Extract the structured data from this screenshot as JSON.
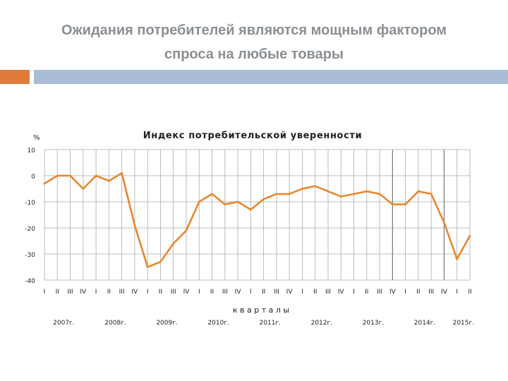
{
  "slide": {
    "title_line1": "Ожидания потребителей являются мощным фактором",
    "title_line2": "спроса на любые товары"
  },
  "colors": {
    "accent_orange": "#e07b3a",
    "accent_blue": "#a9bdd6",
    "line": "#e8872e",
    "grid": "#aaaaaa",
    "title": "#8a8f94"
  },
  "chart_data": {
    "type": "line",
    "title": "Индекс потребительской уверенности",
    "ylabel": "%",
    "xlabel": "к в а р т а л ы",
    "ylim": [
      -40,
      10
    ],
    "yticks": [
      10,
      0,
      -10,
      -20,
      -30,
      -40
    ],
    "grid": true,
    "x": [
      "I",
      "II",
      "III",
      "IV",
      "I",
      "II",
      "III",
      "IV",
      "I",
      "II",
      "III",
      "IV",
      "I",
      "II",
      "III",
      "IV",
      "I",
      "II",
      "III",
      "IV",
      "I",
      "II",
      "III",
      "IV",
      "I",
      "II",
      "III",
      "IV",
      "I",
      "II",
      "III",
      "IV",
      "I",
      "II"
    ],
    "years": [
      "2007г.",
      "2008г.",
      "2009г.",
      "2010г.",
      "2011г.",
      "2012г.",
      "2013г.",
      "2014г.",
      "2015г."
    ],
    "series": [
      {
        "values": [
          -3,
          0,
          0,
          -5,
          0,
          -2,
          1,
          -19,
          -35,
          -33,
          -26,
          -21,
          -10,
          -7,
          -11,
          -10,
          -13,
          -9,
          -7,
          -7,
          -5,
          -4,
          -6,
          -8,
          -7,
          -6,
          -7,
          -11,
          -11,
          -6,
          -7,
          -18,
          -32,
          -23
        ]
      }
    ]
  }
}
